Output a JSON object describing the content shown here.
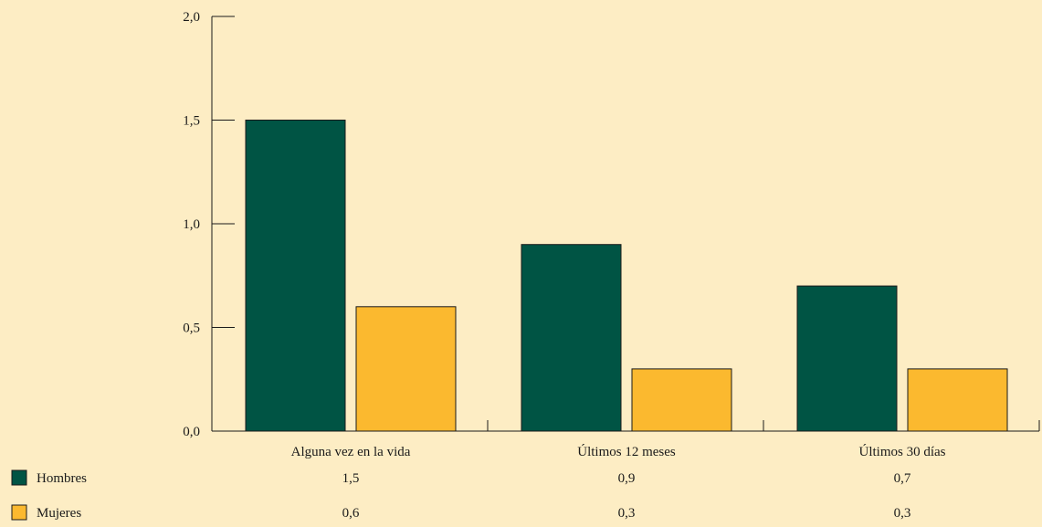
{
  "chart_data": {
    "type": "bar",
    "categories": [
      "Alguna vez en la vida",
      "Últimos 12 meses",
      "Últimos 30 días"
    ],
    "series": [
      {
        "name": "Hombres",
        "values": [
          1.5,
          0.9,
          0.7
        ],
        "color": "#005444",
        "labels": [
          "1,5",
          "0,9",
          "0,7"
        ]
      },
      {
        "name": "Mujeres",
        "values": [
          0.6,
          0.3,
          0.3
        ],
        "color": "#fbb92f",
        "labels": [
          "0,6",
          "0,3",
          "0,3"
        ]
      }
    ],
    "yticks": [
      0,
      0.5,
      1.0,
      1.5,
      2.0
    ],
    "ytick_labels": [
      "0,0",
      "0,5",
      "1,0",
      "1,5",
      "2,0"
    ],
    "ylim": [
      0,
      2.0
    ],
    "title": "",
    "xlabel": "",
    "ylabel": "",
    "legend": "bottom-left data table",
    "grid": false,
    "background": "#fdedc4"
  }
}
